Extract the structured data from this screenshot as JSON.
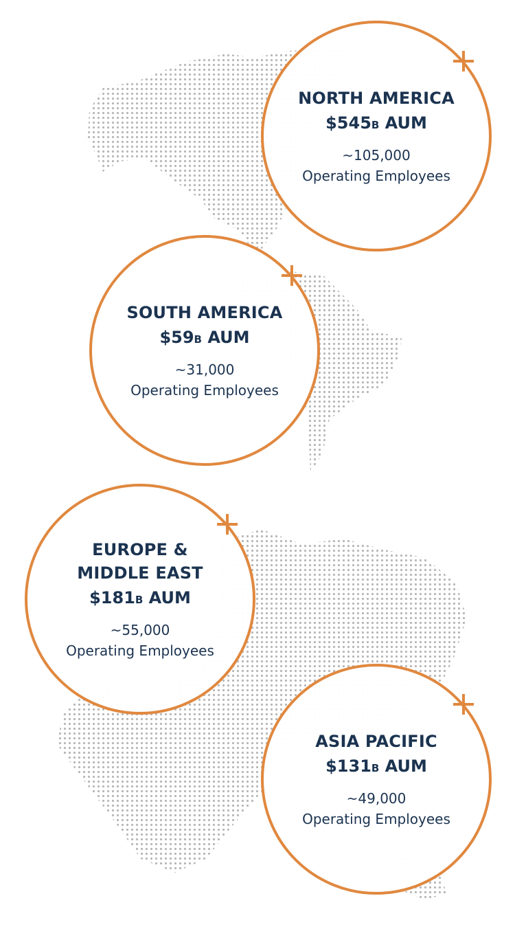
{
  "colors": {
    "accent": "#E0883F",
    "text": "#1B3350",
    "map_dots": "#B7B7B7"
  },
  "icons": {
    "expand": "plus-icon"
  },
  "regions": [
    {
      "title": "NORTH AMERICA",
      "aum_value": "$545",
      "aum_unit": "B",
      "aum_suffix": " AUM",
      "employees": "~105,000",
      "employees_label": "Operating Employees"
    },
    {
      "title": "SOUTH AMERICA",
      "aum_value": "$59",
      "aum_unit": "B",
      "aum_suffix": " AUM",
      "employees": "~31,000",
      "employees_label": "Operating Employees"
    },
    {
      "title_line1": "EUROPE &",
      "title_line2": "MIDDLE EAST",
      "aum_value": "$181",
      "aum_unit": "B",
      "aum_suffix": " AUM",
      "employees": "~55,000",
      "employees_label": "Operating Employees"
    },
    {
      "title": "ASIA PACIFIC",
      "aum_value": "$131",
      "aum_unit": "B",
      "aum_suffix": " AUM",
      "employees": "~49,000",
      "employees_label": "Operating Employees"
    }
  ]
}
